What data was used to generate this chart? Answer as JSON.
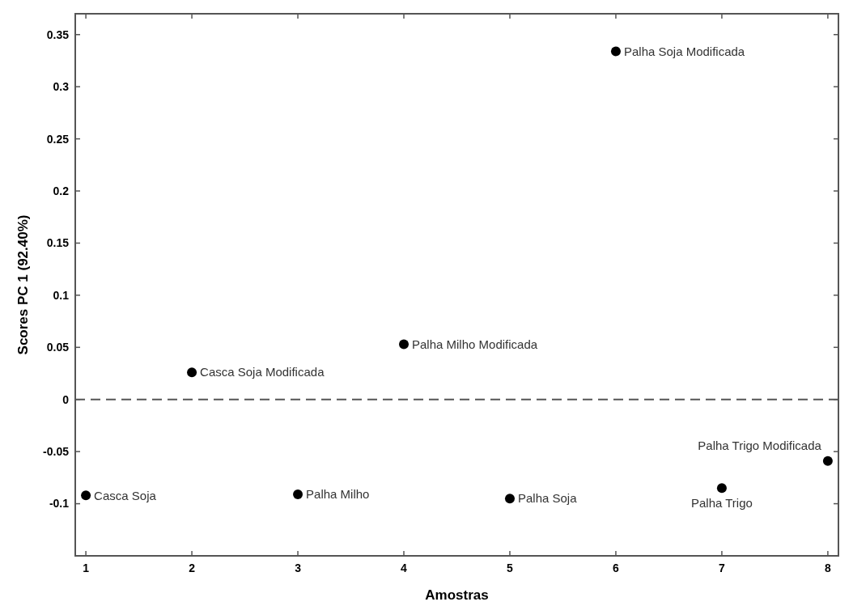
{
  "chart_data": {
    "type": "scatter",
    "xlabel": "Amostras",
    "ylabel": "Scores PC 1 (92.40%)",
    "x": [
      1,
      2,
      3,
      4,
      5,
      6,
      7,
      8
    ],
    "values": [
      -0.092,
      0.026,
      -0.091,
      0.053,
      -0.095,
      0.334,
      -0.085,
      -0.059
    ],
    "color": "#000000",
    "marker": "circle",
    "xlim": [
      0.9,
      8.1
    ],
    "xticks": [
      1,
      2,
      3,
      4,
      5,
      6,
      7,
      8
    ],
    "ylim": [
      -0.15,
      0.37
    ],
    "yticks": [
      -0.1,
      -0.05,
      0,
      0.05,
      0.1,
      0.15,
      0.2,
      0.25,
      0.3,
      0.35
    ],
    "grid": false,
    "ref_lines": [
      {
        "axis": "y",
        "value": 0,
        "color": "#555555",
        "line_style": "dashed"
      }
    ],
    "annotations": [
      {
        "text": "Casca Soja",
        "x": 1,
        "y": -0.092
      },
      {
        "text": "Casca Soja Modificada",
        "x": 2,
        "y": 0.026
      },
      {
        "text": "Palha Milho",
        "x": 3,
        "y": -0.091
      },
      {
        "text": "Palha Milho Modificada",
        "x": 4,
        "y": 0.053
      },
      {
        "text": "Palha Soja",
        "x": 5,
        "y": -0.095
      },
      {
        "text": "Palha Soja Modificada",
        "x": 6,
        "y": 0.334
      },
      {
        "text": "Palha Trigo",
        "x": 7,
        "y": -0.085
      },
      {
        "text": "Palha Trigo Modificada",
        "x": 8,
        "y": -0.059
      }
    ]
  }
}
